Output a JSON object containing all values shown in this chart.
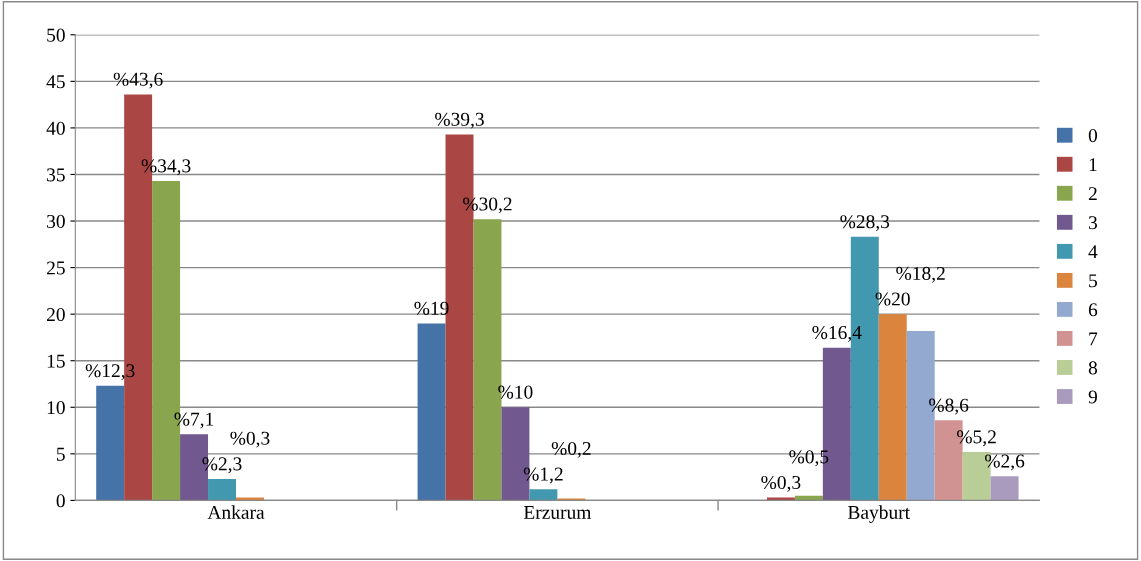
{
  "chart_data": {
    "type": "bar",
    "categories": [
      "Ankara",
      "Erzurum",
      "Bayburt"
    ],
    "series": [
      {
        "name": "0",
        "color": "#4572a7",
        "values": [
          12.3,
          19,
          null
        ],
        "value_labels": [
          "%12,3",
          "%19",
          null
        ]
      },
      {
        "name": "1",
        "color": "#aa4643",
        "values": [
          43.6,
          39.3,
          0.3
        ],
        "value_labels": [
          "%43,6",
          "%39,3",
          "%0,3"
        ]
      },
      {
        "name": "2",
        "color": "#89a54e",
        "values": [
          34.3,
          30.2,
          0.5
        ],
        "value_labels": [
          "%34,3",
          "%30,2",
          "%0,5"
        ]
      },
      {
        "name": "3",
        "color": "#71588f",
        "values": [
          7.1,
          10,
          16.4
        ],
        "value_labels": [
          "%7,1",
          "%10",
          "%16,4"
        ]
      },
      {
        "name": "4",
        "color": "#4198af",
        "values": [
          2.3,
          1.2,
          28.3
        ],
        "value_labels": [
          "%2,3",
          "%1,2",
          "%28,3"
        ]
      },
      {
        "name": "5",
        "color": "#db843d",
        "values": [
          0.3,
          0.2,
          20
        ],
        "value_labels": [
          "%0,3",
          "%0,2",
          "%20"
        ]
      },
      {
        "name": "6",
        "color": "#93a9cf",
        "values": [
          null,
          null,
          18.2
        ],
        "value_labels": [
          null,
          null,
          "%18,2"
        ]
      },
      {
        "name": "7",
        "color": "#d19392",
        "values": [
          null,
          null,
          8.6
        ],
        "value_labels": [
          null,
          null,
          "%8,6"
        ]
      },
      {
        "name": "8",
        "color": "#b9cd96",
        "values": [
          null,
          null,
          5.2
        ],
        "value_labels": [
          null,
          null,
          "%5,2"
        ]
      },
      {
        "name": "9",
        "color": "#a99bbd",
        "values": [
          null,
          null,
          2.6
        ],
        "value_labels": [
          null,
          null,
          "%2,6"
        ]
      }
    ],
    "ylim": [
      0,
      50
    ],
    "yticks": [
      0,
      5,
      10,
      15,
      20,
      25,
      30,
      35,
      40,
      45,
      50
    ],
    "grid": "y",
    "legend": "right"
  }
}
